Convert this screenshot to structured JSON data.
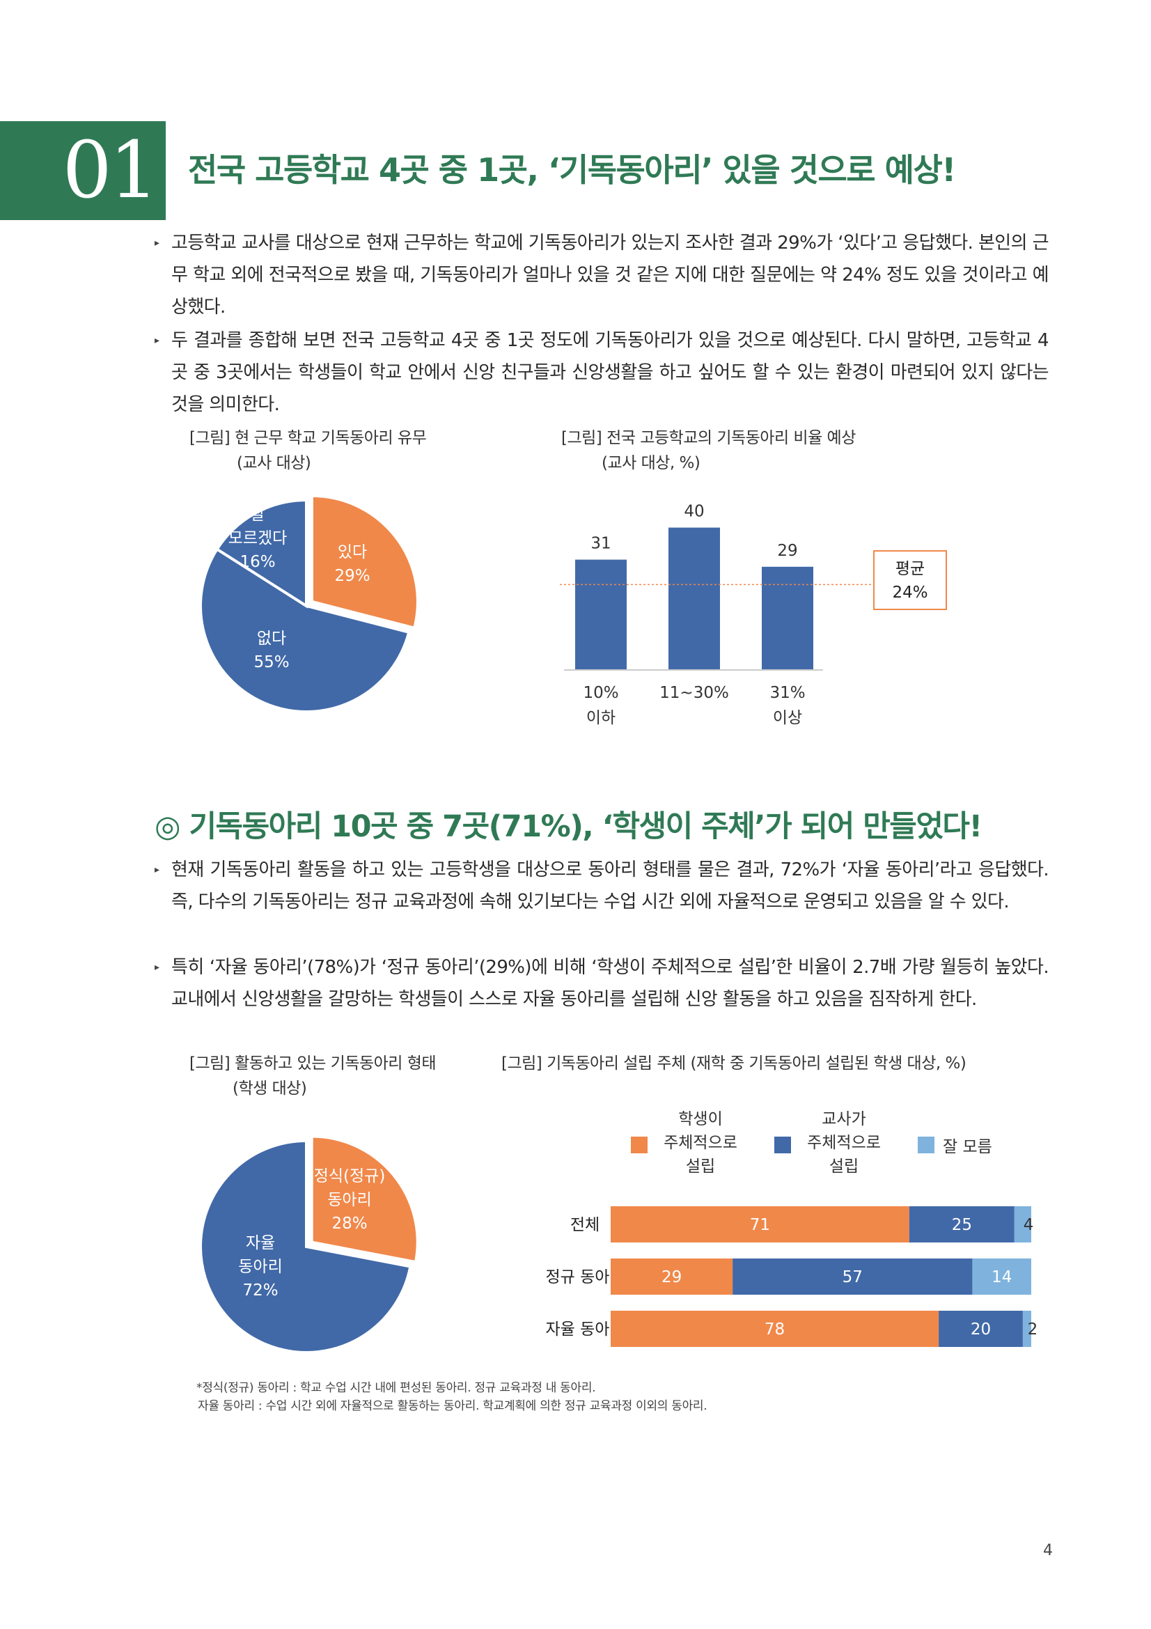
{
  "section1": {
    "number": "01",
    "title": "전국 고등학교 4곳 중 1곳, ‘기독동아리’ 있을 것으로 예상!",
    "bullets": [
      "고등학교 교사를 대상으로 현재 근무하는 학교에 기독동아리가 있는지 조사한 결과 29%가 ‘있다’고 응답했다. 본인의 근무 학교 외에 전국적으로 봤을 때, 기독동아리가 얼마나 있을 것 같은 지에 대한 질문에는 약 24% 정도 있을 것이라고 예상했다.",
      "두 결과를 종합해 보면 전국 고등학교 4곳 중 1곳 정도에 기독동아리가 있을 것으로 예상된다. 다시 말하면, 고등학교 4곳 중 3곳에서는 학생들이 학교 안에서 신앙 친구들과 신앙생활을 하고 싶어도 할 수 있는 환경이 마련되어 있지 않다는 것을 의미한다."
    ],
    "fig1": {
      "caption1": "[그림] 현 근무 학교 기독동아리 유무",
      "caption2": "(교사 대상)"
    },
    "fig2": {
      "caption1": "[그림] 전국 고등학교의 기독동아리 비율 예상",
      "caption2": "(교사 대상, %)",
      "avg_label": "평균",
      "avg_value": "24%"
    }
  },
  "section2": {
    "title": "◎ 기독동아리 10곳 중 7곳(71%), ‘학생이 주체’가 되어 만들었다!",
    "bullets": [
      "현재 기독동아리 활동을 하고 있는 고등학생을 대상으로 동아리 형태를 물은 결과, 72%가 ‘자율 동아리’라고 응답했다. 즉, 다수의 기독동아리는 정규 교육과정에 속해 있기보다는 수업 시간 외에 자율적으로 운영되고 있음을 알 수 있다.",
      "특히 ‘자율 동아리’(78%)가 ‘정규 동아리’(29%)에 비해 ‘학생이 주체적으로 설립’한 비율이 2.7배 가량 월등히 높았다. 교내에서 신앙생활을 갈망하는 학생들이 스스로 자율 동아리를 설립해 신앙 활동을 하고 있음을 짐작하게 한다."
    ],
    "fig3": {
      "caption1": "[그림] 활동하고 있는 기독동아리 형태",
      "caption2": "(학생 대상)"
    },
    "fig4": {
      "caption1": "[그림] 기독동아리 설립 주체 (재학 중 기독동아리 설립된 학생 대상, %)"
    }
  },
  "footnote": {
    "line1": "*정식(정규) 동아리 : 학교 수업 시간 내에 편성된 동아리. 정규 교육과정 내 동아리.",
    "line2": "자율 동아리 : 수업 시간 외에 자율적으로 활동하는 동아리. 학교계획에 의한 정규 교육과정 이외의 동아리."
  },
  "page_number": "4",
  "colors": {
    "accent_green": "#2f7a55",
    "blue": "#4169a8",
    "orange": "#f0884a",
    "light_blue": "#7fb3dd"
  },
  "chart_data": [
    {
      "type": "pie",
      "slices": [
        {
          "lines": [
            "있다",
            "29%"
          ],
          "value": 29,
          "color": "#f0884a"
        },
        {
          "lines": [
            "없다",
            "55%"
          ],
          "value": 55,
          "color": "#4169a8"
        },
        {
          "lines": [
            "잘",
            "모르겠다",
            "16%"
          ],
          "value": 16,
          "color": "#4169a8"
        }
      ]
    },
    {
      "type": "bar",
      "categories": [
        [
          "10%",
          "이하"
        ],
        [
          "11~30%"
        ],
        [
          "31%",
          "이상"
        ]
      ],
      "values": [
        31,
        40,
        29
      ],
      "average": 24,
      "ylim": [
        0,
        45
      ]
    },
    {
      "type": "pie",
      "slices": [
        {
          "lines": [
            "정식(정규)",
            "동아리",
            "28%"
          ],
          "value": 28,
          "color": "#f0884a"
        },
        {
          "lines": [
            "자율",
            "동아리",
            "72%"
          ],
          "value": 72,
          "color": "#4169a8"
        }
      ]
    },
    {
      "type": "bar",
      "orientation": "horizontal-stacked",
      "legend": [
        {
          "lines": [
            "학생이",
            "주체적으로",
            "설립"
          ],
          "color": "#f0884a"
        },
        {
          "lines": [
            "교사가",
            "주체적으로",
            "설립"
          ],
          "color": "#4169a8"
        },
        {
          "lines": [
            "잘 모름"
          ],
          "color": "#7fb3dd"
        }
      ],
      "categories": [
        "전체",
        "정규 동아리",
        "자율 동아리"
      ],
      "series": [
        {
          "values": [
            71,
            29,
            78
          ],
          "color": "#f0884a"
        },
        {
          "values": [
            25,
            57,
            20
          ],
          "color": "#4169a8"
        },
        {
          "values": [
            4,
            14,
            2
          ],
          "color": "#7fb3dd"
        }
      ]
    }
  ]
}
